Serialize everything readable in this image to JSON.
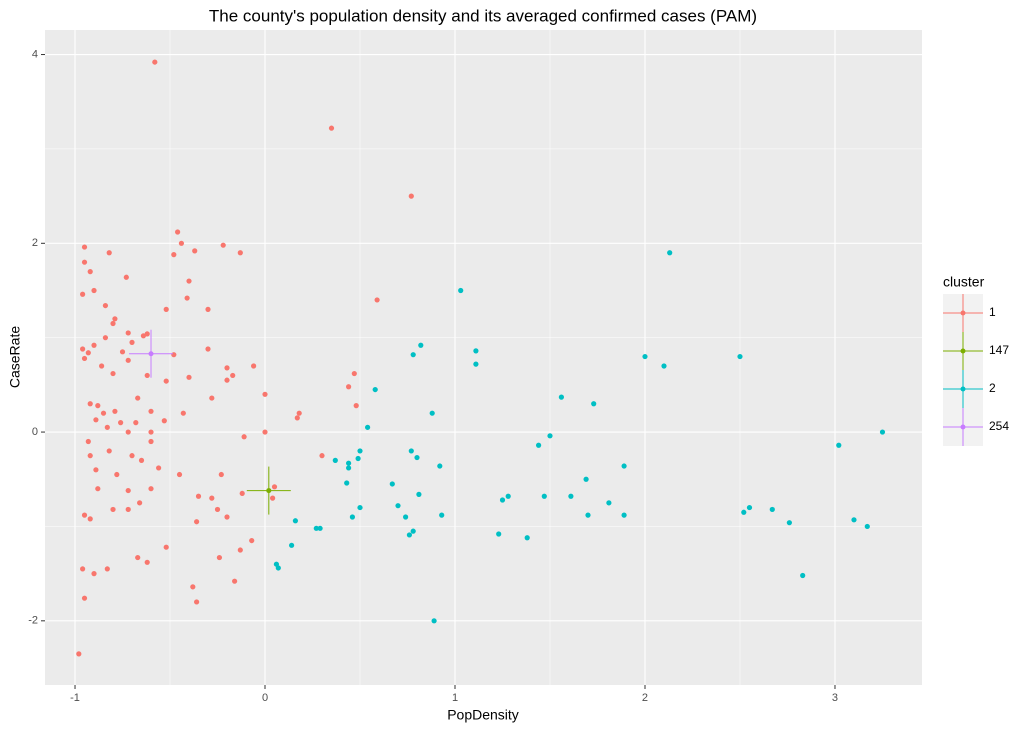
{
  "chart_data": {
    "type": "scatter",
    "title": "The county's population density and its averaged confirmed cases (PAM)",
    "x_label": "PopDensity",
    "y_label": "CaseRate",
    "xlim": [
      -1.158,
      3.458
    ],
    "ylim": [
      -2.68,
      4.26
    ],
    "xticks": [
      -1,
      0,
      1,
      2,
      3
    ],
    "yticks": [
      -2,
      0,
      2,
      4
    ],
    "grid": true,
    "legend_title": "cluster",
    "legend_position": "right",
    "series": [
      {
        "name": "1",
        "color": "#F8766D",
        "marker": "point",
        "x": [
          -0.58,
          0.35,
          0.77,
          -0.46,
          -0.44,
          -0.22,
          -0.95,
          -0.13,
          -0.82,
          -0.37,
          -0.48,
          -0.95,
          -0.92,
          -0.73,
          -0.4,
          -0.9,
          -0.96,
          -0.41,
          0.59,
          -0.84,
          -0.52,
          -0.3,
          -0.79,
          -0.8,
          -0.72,
          -0.62,
          -0.64,
          -0.84,
          -0.7,
          -0.9,
          -0.96,
          -0.3,
          -0.93,
          -0.75,
          -0.48,
          -0.72,
          -0.95,
          -0.06,
          -0.86,
          -0.2,
          -0.8,
          -0.62,
          -0.4,
          -0.17,
          0.47,
          -0.2,
          -0.52,
          0.44,
          -0.28,
          -0.67,
          0.0,
          0.48,
          -0.92,
          -0.88,
          -0.85,
          -0.79,
          -0.6,
          -0.43,
          0.18,
          0.17,
          -0.89,
          -0.76,
          -0.68,
          -0.53,
          -0.83,
          -0.72,
          -0.6,
          -0.11,
          0.0,
          -0.93,
          -0.6,
          -0.82,
          -0.7,
          -0.92,
          -0.65,
          0.3,
          -0.56,
          -0.89,
          -0.78,
          -0.45,
          -0.23,
          0.05,
          -0.88,
          -0.72,
          -0.6,
          -0.35,
          -0.12,
          -0.28,
          -0.66,
          -0.8,
          -0.72,
          -0.25,
          -0.95,
          -0.92,
          -0.36,
          -0.2,
          -0.07,
          -0.52,
          -0.13,
          -0.67,
          -0.24,
          -0.62,
          -0.96,
          -0.83,
          -0.9,
          -0.16,
          -0.38,
          -0.95,
          -0.36,
          -0.98,
          0.04
        ],
        "y": [
          3.92,
          3.22,
          2.5,
          2.12,
          2.0,
          1.98,
          1.96,
          1.9,
          1.9,
          1.92,
          1.88,
          1.8,
          1.7,
          1.64,
          1.6,
          1.5,
          1.46,
          1.42,
          1.4,
          1.34,
          1.3,
          1.3,
          1.2,
          1.15,
          1.05,
          1.04,
          1.02,
          1.0,
          0.95,
          0.92,
          0.88,
          0.88,
          0.84,
          0.85,
          0.82,
          0.76,
          0.78,
          0.7,
          0.7,
          0.68,
          0.62,
          0.6,
          0.58,
          0.6,
          0.62,
          0.55,
          0.54,
          0.48,
          0.36,
          0.36,
          0.4,
          0.28,
          0.3,
          0.28,
          0.2,
          0.22,
          0.22,
          0.2,
          0.2,
          0.15,
          0.13,
          0.1,
          0.1,
          0.12,
          0.05,
          0.0,
          0.0,
          -0.05,
          0.0,
          -0.1,
          -0.1,
          -0.2,
          -0.25,
          -0.25,
          -0.3,
          -0.25,
          -0.38,
          -0.4,
          -0.45,
          -0.45,
          -0.45,
          -0.58,
          -0.6,
          -0.62,
          -0.6,
          -0.68,
          -0.65,
          -0.7,
          -0.75,
          -0.82,
          -0.82,
          -0.82,
          -0.88,
          -0.92,
          -0.95,
          -0.9,
          -1.15,
          -1.22,
          -1.25,
          -1.33,
          -1.33,
          -1.38,
          -1.45,
          -1.45,
          -1.5,
          -1.58,
          -1.64,
          -1.76,
          -1.8,
          -2.35,
          -0.7
        ]
      },
      {
        "name": "147",
        "color": "#7CAE00",
        "marker": "crosshair",
        "x": [
          0.02
        ],
        "y": [
          -0.62
        ]
      },
      {
        "name": "2",
        "color": "#00BFC4",
        "marker": "point",
        "x": [
          2.13,
          1.03,
          1.11,
          0.82,
          0.78,
          1.11,
          2.0,
          2.5,
          2.1,
          0.58,
          1.56,
          1.73,
          0.88,
          0.54,
          3.25,
          1.5,
          3.02,
          1.44,
          0.77,
          0.8,
          0.5,
          0.49,
          0.37,
          0.44,
          0.44,
          0.92,
          1.89,
          1.69,
          0.67,
          0.43,
          0.81,
          1.47,
          1.61,
          1.28,
          1.25,
          1.81,
          0.7,
          0.5,
          2.52,
          2.55,
          2.67,
          0.74,
          0.46,
          0.93,
          1.7,
          1.89,
          0.16,
          2.76,
          3.1,
          3.17,
          0.27,
          0.29,
          0.78,
          0.76,
          1.23,
          1.38,
          0.14,
          0.06,
          0.07,
          2.83,
          0.89
        ],
        "y": [
          1.9,
          1.5,
          0.86,
          0.92,
          0.82,
          0.72,
          0.8,
          0.8,
          0.7,
          0.45,
          0.37,
          0.3,
          0.2,
          0.05,
          0.0,
          -0.04,
          -0.14,
          -0.14,
          -0.2,
          -0.27,
          -0.2,
          -0.28,
          -0.3,
          -0.33,
          -0.38,
          -0.36,
          -0.36,
          -0.5,
          -0.55,
          -0.54,
          -0.66,
          -0.68,
          -0.68,
          -0.68,
          -0.72,
          -0.75,
          -0.78,
          -0.8,
          -0.85,
          -0.8,
          -0.82,
          -0.9,
          -0.9,
          -0.88,
          -0.88,
          -0.88,
          -0.94,
          -0.96,
          -0.93,
          -1.0,
          -1.02,
          -1.02,
          -1.05,
          -1.09,
          -1.08,
          -1.12,
          -1.2,
          -1.4,
          -1.44,
          -1.52,
          -2.0
        ]
      },
      {
        "name": "254",
        "color": "#C77CFF",
        "marker": "crosshair",
        "x": [
          -0.6
        ],
        "y": [
          0.83
        ]
      }
    ]
  }
}
